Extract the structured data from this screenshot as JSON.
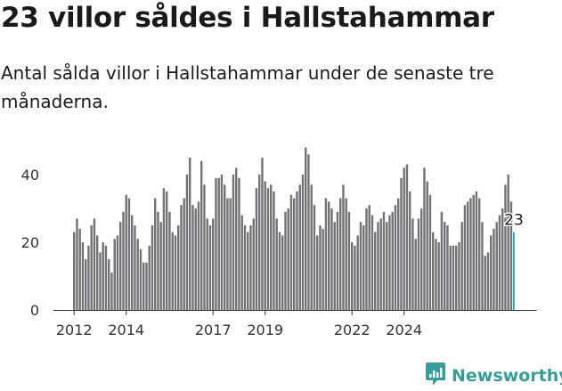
{
  "header": {
    "title": "23 villor såldes i Hallstahammar",
    "subtitle": "Antal sålda villor i Hallstahammar under de senaste tre månaderna."
  },
  "brand": {
    "name": "Newsworthy",
    "icon": "newsworthy-logo-icon",
    "color": "#3a9c97"
  },
  "colors": {
    "bar": "#737276",
    "highlight": "#2fa39d",
    "axis": "#333333"
  },
  "chart_data": {
    "type": "bar",
    "title": "",
    "xlabel": "",
    "ylabel": "",
    "ylim": [
      0,
      48
    ],
    "yticks": [
      0,
      20,
      40
    ],
    "xtick_labels": [
      "2012",
      "2014",
      "2017",
      "2019",
      "2022",
      "2024"
    ],
    "xtick_index": [
      0,
      18,
      48,
      66,
      96,
      114
    ],
    "grid": false,
    "legend": "none",
    "highlight_label": "23",
    "values": [
      23,
      27,
      24,
      20,
      15,
      19,
      25,
      27,
      22,
      17,
      20,
      19,
      15,
      11,
      21,
      22,
      26,
      29,
      34,
      33,
      28,
      25,
      21,
      18,
      14,
      14,
      19,
      25,
      33,
      29,
      26,
      36,
      35,
      29,
      23,
      22,
      25,
      31,
      33,
      40,
      45,
      31,
      30,
      32,
      44,
      37,
      27,
      25,
      27,
      39,
      39,
      40,
      37,
      33,
      33,
      40,
      42,
      39,
      28,
      25,
      23,
      25,
      27,
      36,
      40,
      45,
      38,
      36,
      37,
      35,
      27,
      23,
      22,
      29,
      30,
      34,
      33,
      35,
      37,
      40,
      48,
      46,
      37,
      31,
      22,
      25,
      24,
      33,
      32,
      30,
      26,
      29,
      33,
      37,
      33,
      29,
      20,
      19,
      22,
      26,
      25,
      30,
      31,
      28,
      23,
      26,
      27,
      29,
      26,
      28,
      29,
      31,
      33,
      39,
      42,
      43,
      35,
      27,
      21,
      27,
      30,
      42,
      38,
      34,
      23,
      21,
      20,
      29,
      26,
      25,
      19,
      19,
      19,
      20,
      26,
      31,
      32,
      33,
      34,
      35,
      33,
      26,
      16,
      17,
      22,
      24,
      26,
      28,
      30,
      37,
      40,
      32,
      23
    ]
  }
}
